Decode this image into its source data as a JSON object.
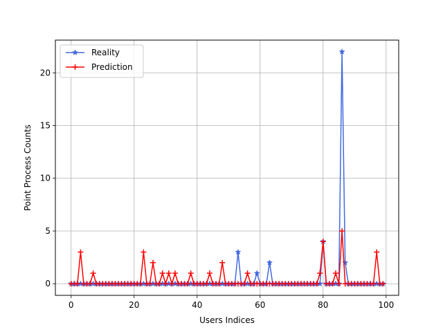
{
  "chart_data": {
    "type": "line",
    "title": "",
    "xlabel": "Users Indices",
    "ylabel": "Point Process Counts",
    "xlim": [
      -5,
      104
    ],
    "ylim": [
      -1.1,
      23.1
    ],
    "xticks": [
      0,
      20,
      40,
      60,
      80,
      100
    ],
    "yticks": [
      0,
      5,
      10,
      15,
      20
    ],
    "grid": true,
    "legend_position": "top-left",
    "series": [
      {
        "name": "Reality",
        "color": "#4169e1",
        "marker": "star",
        "values": [
          0,
          0,
          0,
          0,
          0,
          0,
          0,
          0,
          0,
          0,
          0,
          0,
          0,
          0,
          0,
          0,
          0,
          0,
          0,
          0,
          0,
          0,
          0,
          0,
          0,
          0,
          0,
          0,
          0,
          0,
          0,
          0,
          0,
          0,
          0,
          0,
          0,
          0,
          0,
          0,
          0,
          0,
          0,
          0,
          0,
          0,
          0,
          0,
          0,
          0,
          0,
          0,
          0,
          3,
          0,
          0,
          0,
          0,
          0,
          1,
          0,
          0,
          0,
          2,
          0,
          0,
          0,
          0,
          0,
          0,
          0,
          0,
          0,
          0,
          0,
          0,
          0,
          0,
          0,
          0,
          4,
          0,
          0,
          0,
          0,
          0,
          22,
          2,
          0,
          0,
          0,
          0,
          0,
          0,
          0,
          0,
          0,
          0,
          0,
          0
        ]
      },
      {
        "name": "Prediction",
        "color": "#ff0000",
        "marker": "plus",
        "values": [
          0,
          0,
          0,
          3,
          0,
          0,
          0,
          1,
          0,
          0,
          0,
          0,
          0,
          0,
          0,
          0,
          0,
          0,
          0,
          0,
          0,
          0,
          0,
          3,
          0,
          0,
          2,
          0,
          0,
          1,
          0,
          1,
          0,
          1,
          0,
          0,
          0,
          0,
          1,
          0,
          0,
          0,
          0,
          0,
          1,
          0,
          0,
          0,
          2,
          0,
          0,
          0,
          0,
          0,
          0,
          0,
          1,
          0,
          0,
          0,
          0,
          0,
          0,
          0,
          0,
          0,
          0,
          0,
          0,
          0,
          0,
          0,
          0,
          0,
          0,
          0,
          0,
          0,
          0,
          1,
          4,
          0,
          0,
          0,
          1,
          0,
          5,
          0,
          0,
          0,
          0,
          0,
          0,
          0,
          0,
          0,
          0,
          3,
          0,
          0
        ]
      }
    ]
  }
}
